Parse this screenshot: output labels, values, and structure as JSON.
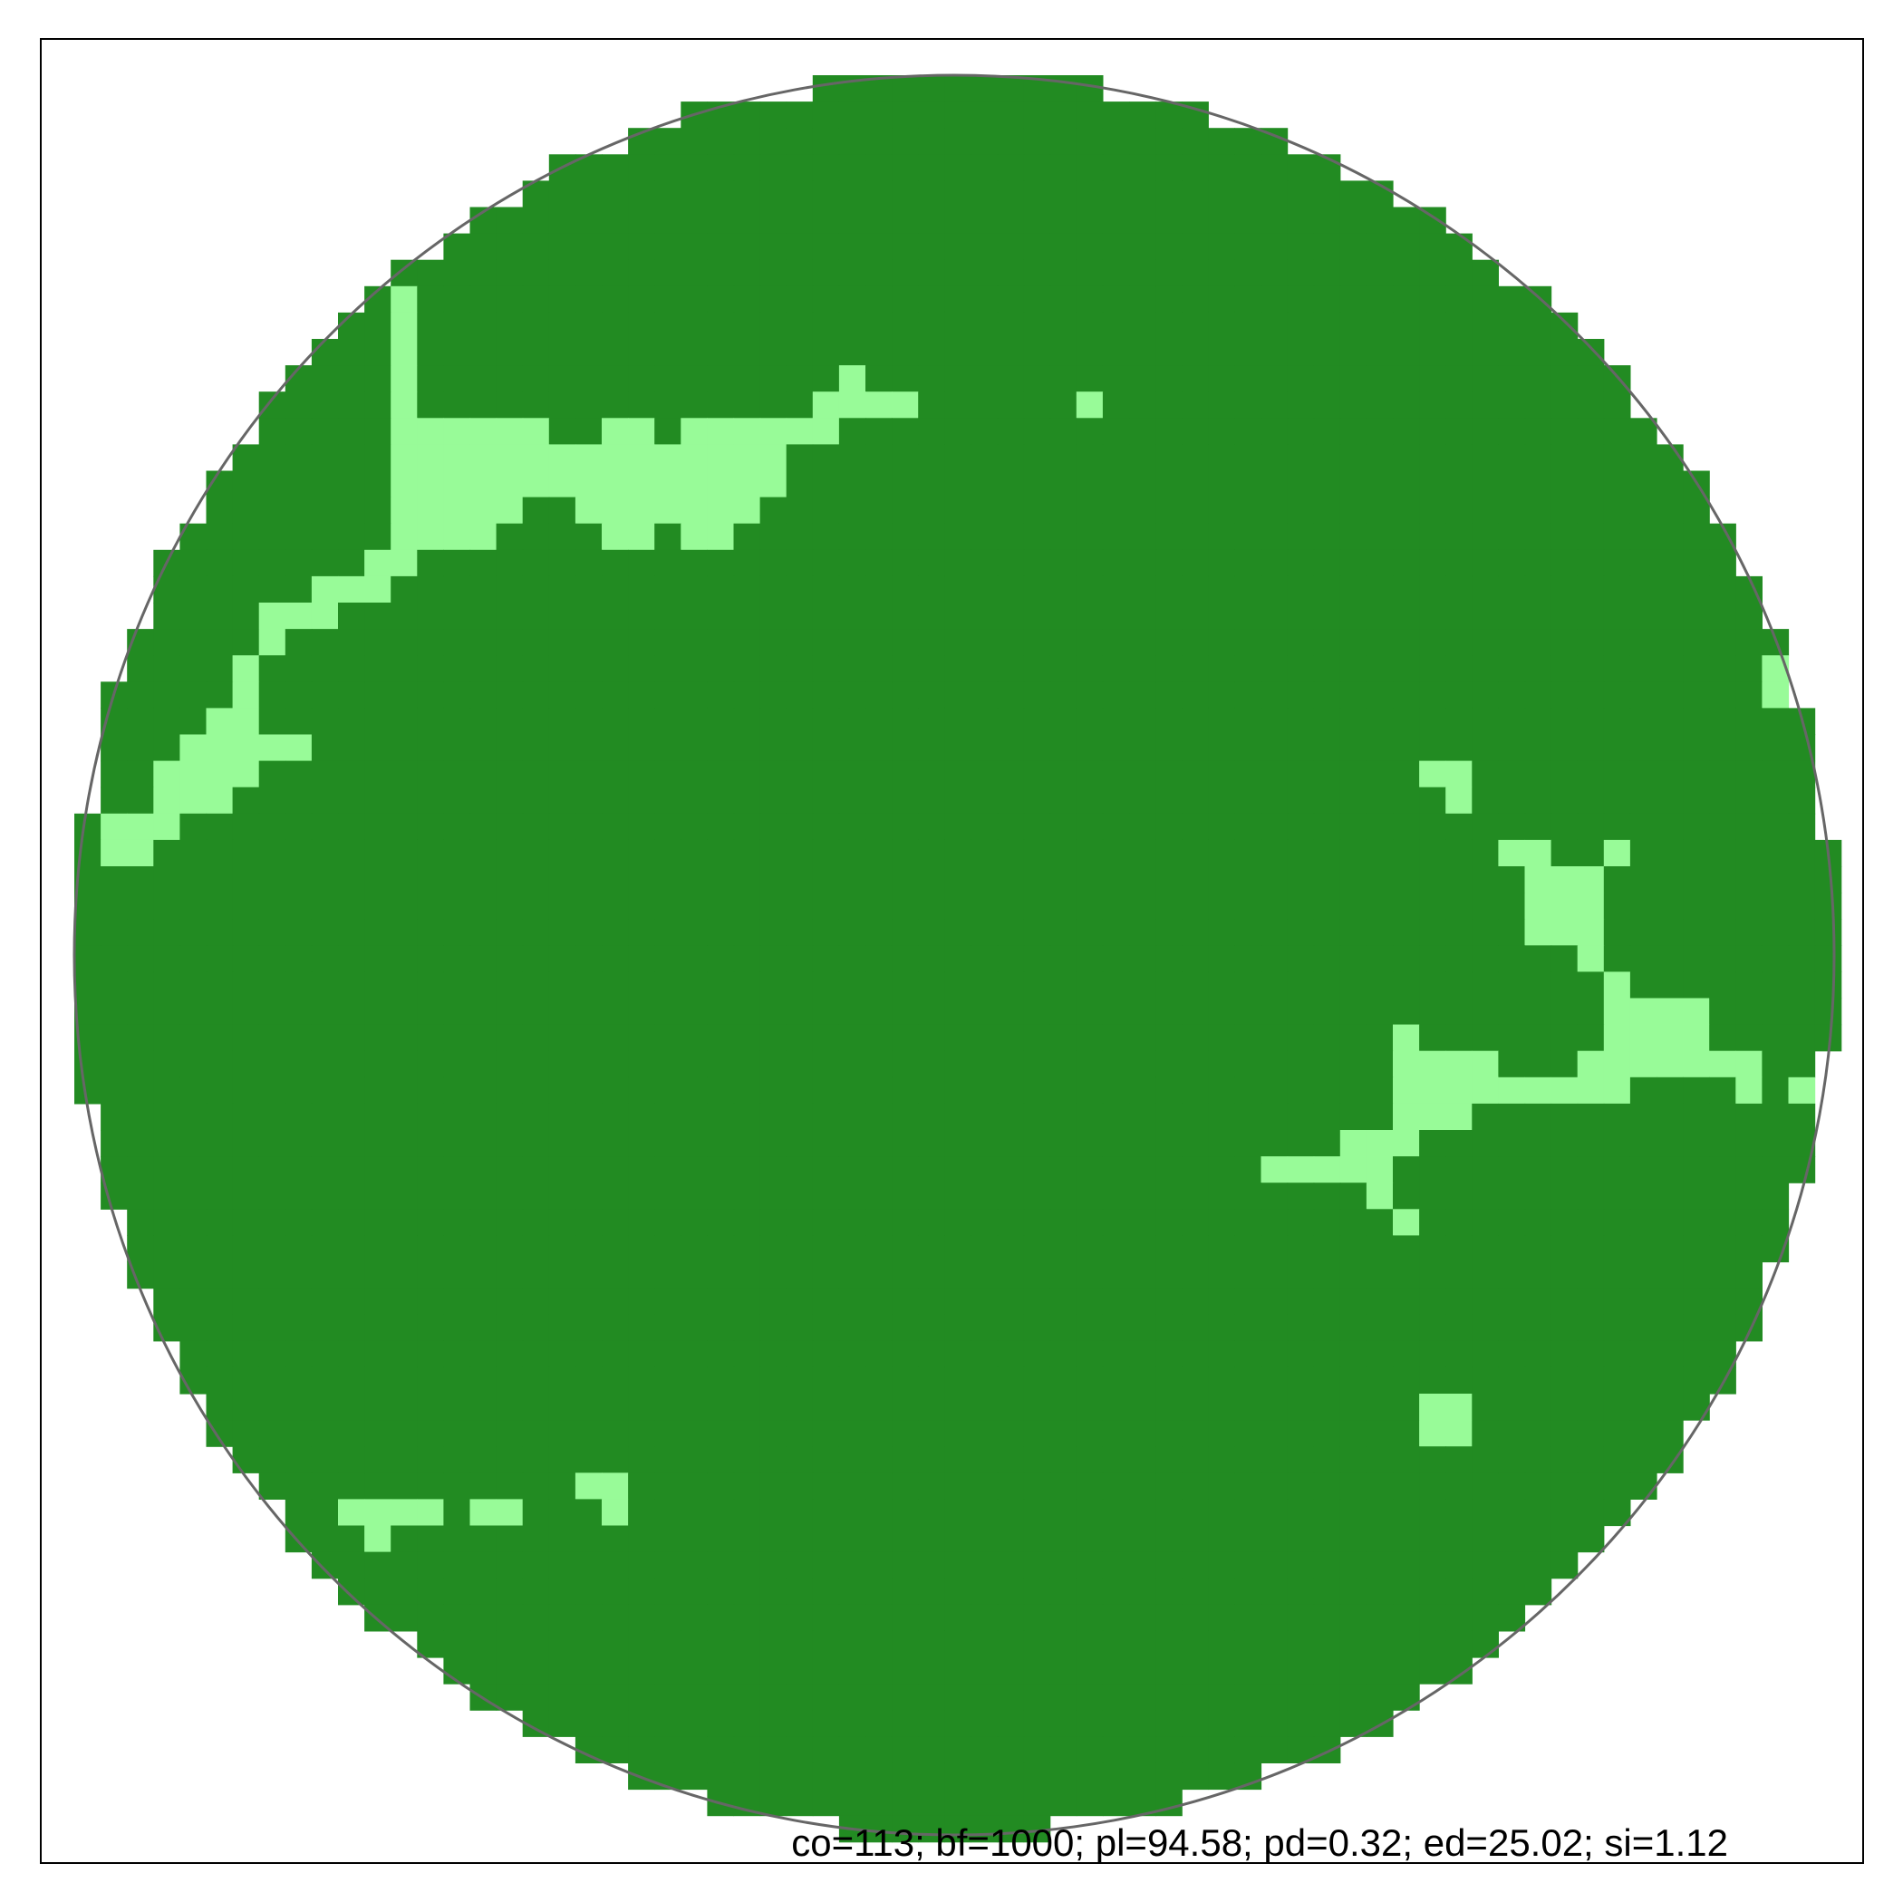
{
  "chart_data": {
    "type": "heatmap",
    "title": "",
    "caption": "co=113; bf=1000; pl=94.58; pd=0.32; ed=25.02; si=1.12",
    "grid": false,
    "grid_size": [
      67,
      67
    ],
    "colors": {
      "background": "#ffffff",
      "frame": "#000000",
      "circle": "#666666",
      "class_dense": "#228b22",
      "class_open": "#98fb98"
    },
    "classes": [
      "dense",
      "open"
    ],
    "open_patch_rows": [
      {
        "row": 8,
        "runs": [
          [
            12,
            12
          ]
        ]
      },
      {
        "row": 9,
        "runs": [
          [
            12,
            12
          ]
        ]
      },
      {
        "row": 10,
        "runs": [
          [
            12,
            12
          ]
        ]
      },
      {
        "row": 11,
        "runs": [
          [
            12,
            12
          ],
          [
            29,
            29
          ]
        ]
      },
      {
        "row": 12,
        "runs": [
          [
            12,
            12
          ],
          [
            28,
            31
          ],
          [
            38,
            38
          ]
        ]
      },
      {
        "row": 13,
        "runs": [
          [
            12,
            17
          ],
          [
            20,
            21
          ],
          [
            23,
            28
          ]
        ]
      },
      {
        "row": 14,
        "runs": [
          [
            12,
            26
          ]
        ]
      },
      {
        "row": 15,
        "runs": [
          [
            12,
            26
          ]
        ]
      },
      {
        "row": 16,
        "runs": [
          [
            12,
            16
          ],
          [
            19,
            25
          ]
        ]
      },
      {
        "row": 17,
        "runs": [
          [
            12,
            15
          ],
          [
            20,
            21
          ],
          [
            23,
            24
          ]
        ]
      },
      {
        "row": 18,
        "runs": [
          [
            11,
            12
          ]
        ]
      },
      {
        "row": 19,
        "runs": [
          [
            9,
            11
          ]
        ]
      },
      {
        "row": 20,
        "runs": [
          [
            7,
            9
          ]
        ]
      },
      {
        "row": 21,
        "runs": [
          [
            7,
            7
          ]
        ]
      },
      {
        "row": 22,
        "runs": [
          [
            6,
            6
          ],
          [
            64,
            64
          ]
        ]
      },
      {
        "row": 23,
        "runs": [
          [
            6,
            6
          ],
          [
            64,
            64
          ]
        ]
      },
      {
        "row": 24,
        "runs": [
          [
            5,
            6
          ]
        ]
      },
      {
        "row": 25,
        "runs": [
          [
            4,
            8
          ]
        ]
      },
      {
        "row": 26,
        "runs": [
          [
            3,
            6
          ],
          [
            51,
            52
          ]
        ]
      },
      {
        "row": 27,
        "runs": [
          [
            3,
            5
          ],
          [
            52,
            52
          ]
        ]
      },
      {
        "row": 28,
        "runs": [
          [
            1,
            3
          ]
        ]
      },
      {
        "row": 29,
        "runs": [
          [
            1,
            2
          ],
          [
            54,
            55
          ],
          [
            58,
            58
          ]
        ]
      },
      {
        "row": 30,
        "runs": [
          [
            55,
            57
          ]
        ]
      },
      {
        "row": 31,
        "runs": [
          [
            55,
            57
          ]
        ]
      },
      {
        "row": 32,
        "runs": [
          [
            55,
            57
          ]
        ]
      },
      {
        "row": 33,
        "runs": [
          [
            57,
            57
          ]
        ]
      },
      {
        "row": 34,
        "runs": [
          [
            58,
            58
          ]
        ]
      },
      {
        "row": 35,
        "runs": [
          [
            58,
            61
          ]
        ]
      },
      {
        "row": 36,
        "runs": [
          [
            50,
            50
          ],
          [
            58,
            61
          ]
        ]
      },
      {
        "row": 37,
        "runs": [
          [
            50,
            53
          ],
          [
            57,
            63
          ]
        ]
      },
      {
        "row": 38,
        "runs": [
          [
            50,
            58
          ],
          [
            63,
            63
          ],
          [
            65,
            65
          ]
        ]
      },
      {
        "row": 39,
        "runs": [
          [
            50,
            52
          ]
        ]
      },
      {
        "row": 40,
        "runs": [
          [
            48,
            50
          ]
        ]
      },
      {
        "row": 41,
        "runs": [
          [
            45,
            49
          ]
        ]
      },
      {
        "row": 42,
        "runs": [
          [
            49,
            49
          ]
        ]
      },
      {
        "row": 43,
        "runs": [
          [
            50,
            50
          ]
        ]
      },
      {
        "row": 50,
        "runs": [
          [
            51,
            52
          ]
        ]
      },
      {
        "row": 51,
        "runs": [
          [
            51,
            52
          ]
        ]
      },
      {
        "row": 53,
        "runs": [
          [
            19,
            20
          ]
        ]
      },
      {
        "row": 54,
        "runs": [
          [
            10,
            13
          ],
          [
            15,
            16
          ],
          [
            20,
            20
          ]
        ]
      },
      {
        "row": 55,
        "runs": [
          [
            11,
            11
          ]
        ]
      }
    ]
  }
}
